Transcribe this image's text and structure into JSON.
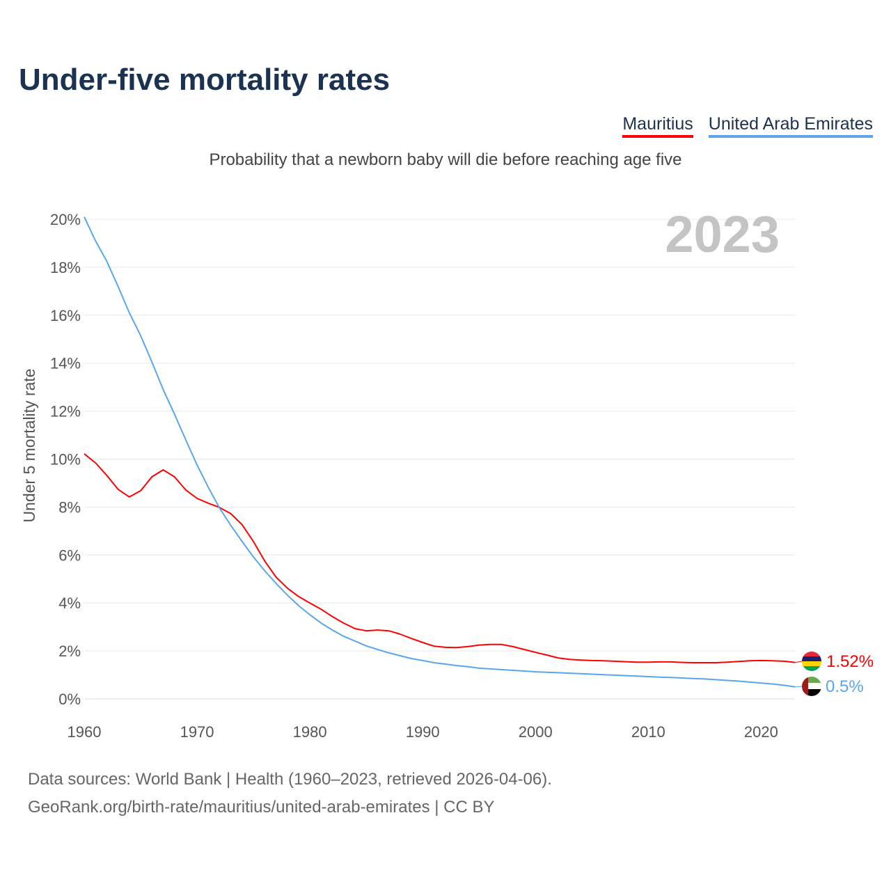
{
  "title": "Under-five mortality rates",
  "subtitle": "Probability that a newborn baby will die before reaching age five",
  "footer": {
    "line1": "Data sources: World Bank | Health (1960–2023, retrieved 2026-04-06).",
    "line2": "GeoRank.org/birth-rate/mauritius/united-arab-emirates | CC BY"
  },
  "chart_data": {
    "type": "line",
    "title": "Under-five mortality rates",
    "ylabel": "Under 5 mortality rate",
    "xlabel": "",
    "year_watermark": "2023",
    "xlim": [
      1960,
      2023
    ],
    "ylim": [
      0,
      20
    ],
    "x_ticks": [
      "1960",
      "1970",
      "1980",
      "1990",
      "2000",
      "2010",
      "2020"
    ],
    "y_ticks": [
      "0%",
      "2%",
      "4%",
      "6%",
      "8%",
      "10%",
      "12%",
      "14%",
      "16%",
      "18%",
      "20%"
    ],
    "grid": true,
    "legend_position": "top-right",
    "x": [
      1960,
      1961,
      1962,
      1963,
      1964,
      1965,
      1966,
      1967,
      1968,
      1969,
      1970,
      1971,
      1972,
      1973,
      1974,
      1975,
      1976,
      1977,
      1978,
      1979,
      1980,
      1981,
      1982,
      1983,
      1984,
      1985,
      1986,
      1987,
      1988,
      1989,
      1990,
      1991,
      1992,
      1993,
      1994,
      1995,
      1996,
      1997,
      1998,
      1999,
      2000,
      2001,
      2002,
      2003,
      2004,
      2005,
      2006,
      2007,
      2008,
      2009,
      2010,
      2011,
      2012,
      2013,
      2014,
      2015,
      2016,
      2017,
      2018,
      2019,
      2020,
      2021,
      2022,
      2023
    ],
    "series": [
      {
        "name": "Mauritius",
        "color": "#ff0000",
        "end_label": "1.52%",
        "values": [
          10.22,
          9.84,
          9.32,
          8.74,
          8.42,
          8.68,
          9.26,
          9.55,
          9.26,
          8.71,
          8.36,
          8.16,
          7.98,
          7.72,
          7.26,
          6.56,
          5.75,
          5.08,
          4.62,
          4.27,
          4.0,
          3.74,
          3.43,
          3.16,
          2.93,
          2.84,
          2.87,
          2.84,
          2.7,
          2.52,
          2.35,
          2.2,
          2.15,
          2.14,
          2.18,
          2.24,
          2.27,
          2.27,
          2.18,
          2.06,
          1.94,
          1.83,
          1.71,
          1.65,
          1.62,
          1.6,
          1.59,
          1.57,
          1.55,
          1.53,
          1.53,
          1.54,
          1.54,
          1.52,
          1.51,
          1.51,
          1.51,
          1.53,
          1.56,
          1.59,
          1.6,
          1.59,
          1.57,
          1.52
        ]
      },
      {
        "name": "United Arab Emirates",
        "color": "#5aa5ec",
        "end_label": "0.5%",
        "values": [
          20.1,
          19.1,
          18.25,
          17.2,
          16.1,
          15.15,
          14.05,
          12.9,
          11.87,
          10.8,
          9.75,
          8.82,
          7.95,
          7.23,
          6.56,
          5.92,
          5.34,
          4.82,
          4.33,
          3.89,
          3.51,
          3.16,
          2.87,
          2.61,
          2.41,
          2.21,
          2.06,
          1.92,
          1.8,
          1.68,
          1.6,
          1.51,
          1.45,
          1.39,
          1.34,
          1.28,
          1.25,
          1.22,
          1.19,
          1.16,
          1.13,
          1.11,
          1.09,
          1.07,
          1.05,
          1.03,
          1.01,
          0.99,
          0.97,
          0.95,
          0.93,
          0.91,
          0.89,
          0.87,
          0.85,
          0.83,
          0.8,
          0.77,
          0.74,
          0.7,
          0.66,
          0.62,
          0.57,
          0.5
        ]
      }
    ]
  }
}
